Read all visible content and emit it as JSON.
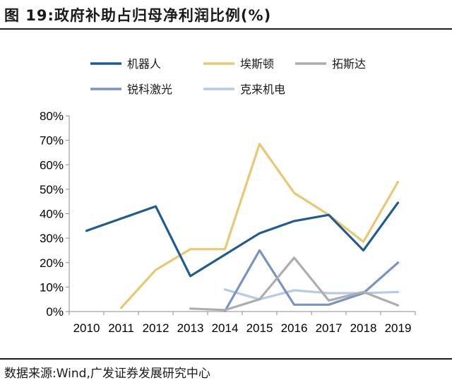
{
  "header": {
    "title": "图 19:政府补助占归母净利润比例(%)"
  },
  "footer": {
    "source": "数据来源:Wind,广发证券发展研究中心"
  },
  "chart_data": {
    "type": "line",
    "title": "图 19:政府补助占归母净利润比例(%)",
    "xlabel": "",
    "ylabel": "",
    "categories": [
      "2010",
      "2011",
      "2012",
      "2013",
      "2014",
      "2015",
      "2016",
      "2017",
      "2018",
      "2019"
    ],
    "ylim": [
      0,
      80
    ],
    "yticks": [
      "0%",
      "10%",
      "20%",
      "30%",
      "40%",
      "50%",
      "60%",
      "70%",
      "80%"
    ],
    "grid": false,
    "legend_position": "top",
    "series": [
      {
        "name": "机器人",
        "color": "#1f5c8f",
        "values": [
          33,
          null,
          43,
          14.5,
          null,
          32,
          37,
          39.5,
          25,
          44.5
        ]
      },
      {
        "name": "埃斯顿",
        "color": "#e8c870",
        "values": [
          null,
          1.5,
          17,
          25.5,
          25.5,
          68.5,
          48.5,
          39.5,
          28.5,
          53
        ]
      },
      {
        "name": "拓斯达",
        "color": "#adadad",
        "values": [
          null,
          null,
          null,
          1.2,
          0.6,
          5,
          22,
          4.5,
          8,
          2.5
        ]
      },
      {
        "name": "锐科激光",
        "color": "#7893c4",
        "values": [
          null,
          null,
          null,
          null,
          0.2,
          25,
          2.8,
          2.8,
          7.5,
          20
        ]
      },
      {
        "name": "克来机电",
        "color": "#b6cbe4",
        "values": [
          null,
          null,
          null,
          null,
          9,
          5,
          8.7,
          7.5,
          7.5,
          8
        ]
      }
    ]
  }
}
